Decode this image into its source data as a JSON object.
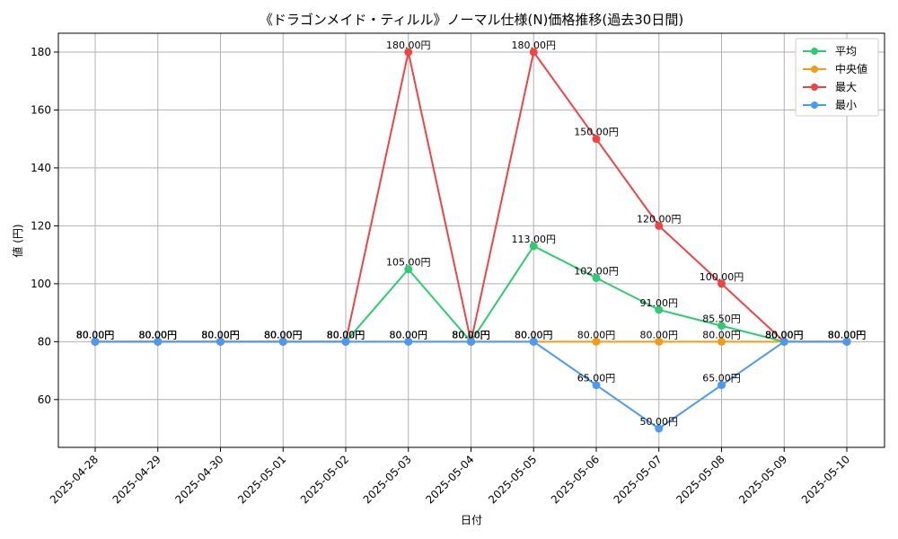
{
  "chart_data": {
    "type": "line",
    "title": "《ドラゴンメイド・ティルル》ノーマル仕様(N)価格推移(過去30日間)",
    "xlabel": "日付",
    "ylabel": "値 (円)",
    "categories": [
      "2025-04-28",
      "2025-04-29",
      "2025-04-30",
      "2025-05-01",
      "2025-05-02",
      "2025-05-03",
      "2025-05-04",
      "2025-05-05",
      "2025-05-06",
      "2025-05-07",
      "2025-05-08",
      "2025-05-09",
      "2025-05-10"
    ],
    "ylim": [
      43.5,
      186.5
    ],
    "yticks": [
      60,
      80,
      100,
      120,
      140,
      160,
      180
    ],
    "grid": true,
    "legend_position": "top-right",
    "series": [
      {
        "name": "平均",
        "color": "#2ecc71",
        "values": [
          80,
          80,
          80,
          80,
          80,
          105,
          80,
          113,
          102,
          91,
          85.5,
          80,
          80
        ]
      },
      {
        "name": "中央値",
        "color": "#f39c12",
        "values": [
          80,
          80,
          80,
          80,
          80,
          80,
          80,
          80,
          80,
          80,
          80,
          80,
          80
        ]
      },
      {
        "name": "最大",
        "color": "#ef4444",
        "values": [
          80,
          80,
          80,
          80,
          80,
          180,
          80,
          180,
          150,
          120,
          100,
          80,
          80
        ]
      },
      {
        "name": "最小",
        "color": "#4a9af5",
        "values": [
          80,
          80,
          80,
          80,
          80,
          80,
          80,
          80,
          65,
          50,
          65,
          80,
          80
        ]
      }
    ],
    "value_suffix": "円"
  }
}
